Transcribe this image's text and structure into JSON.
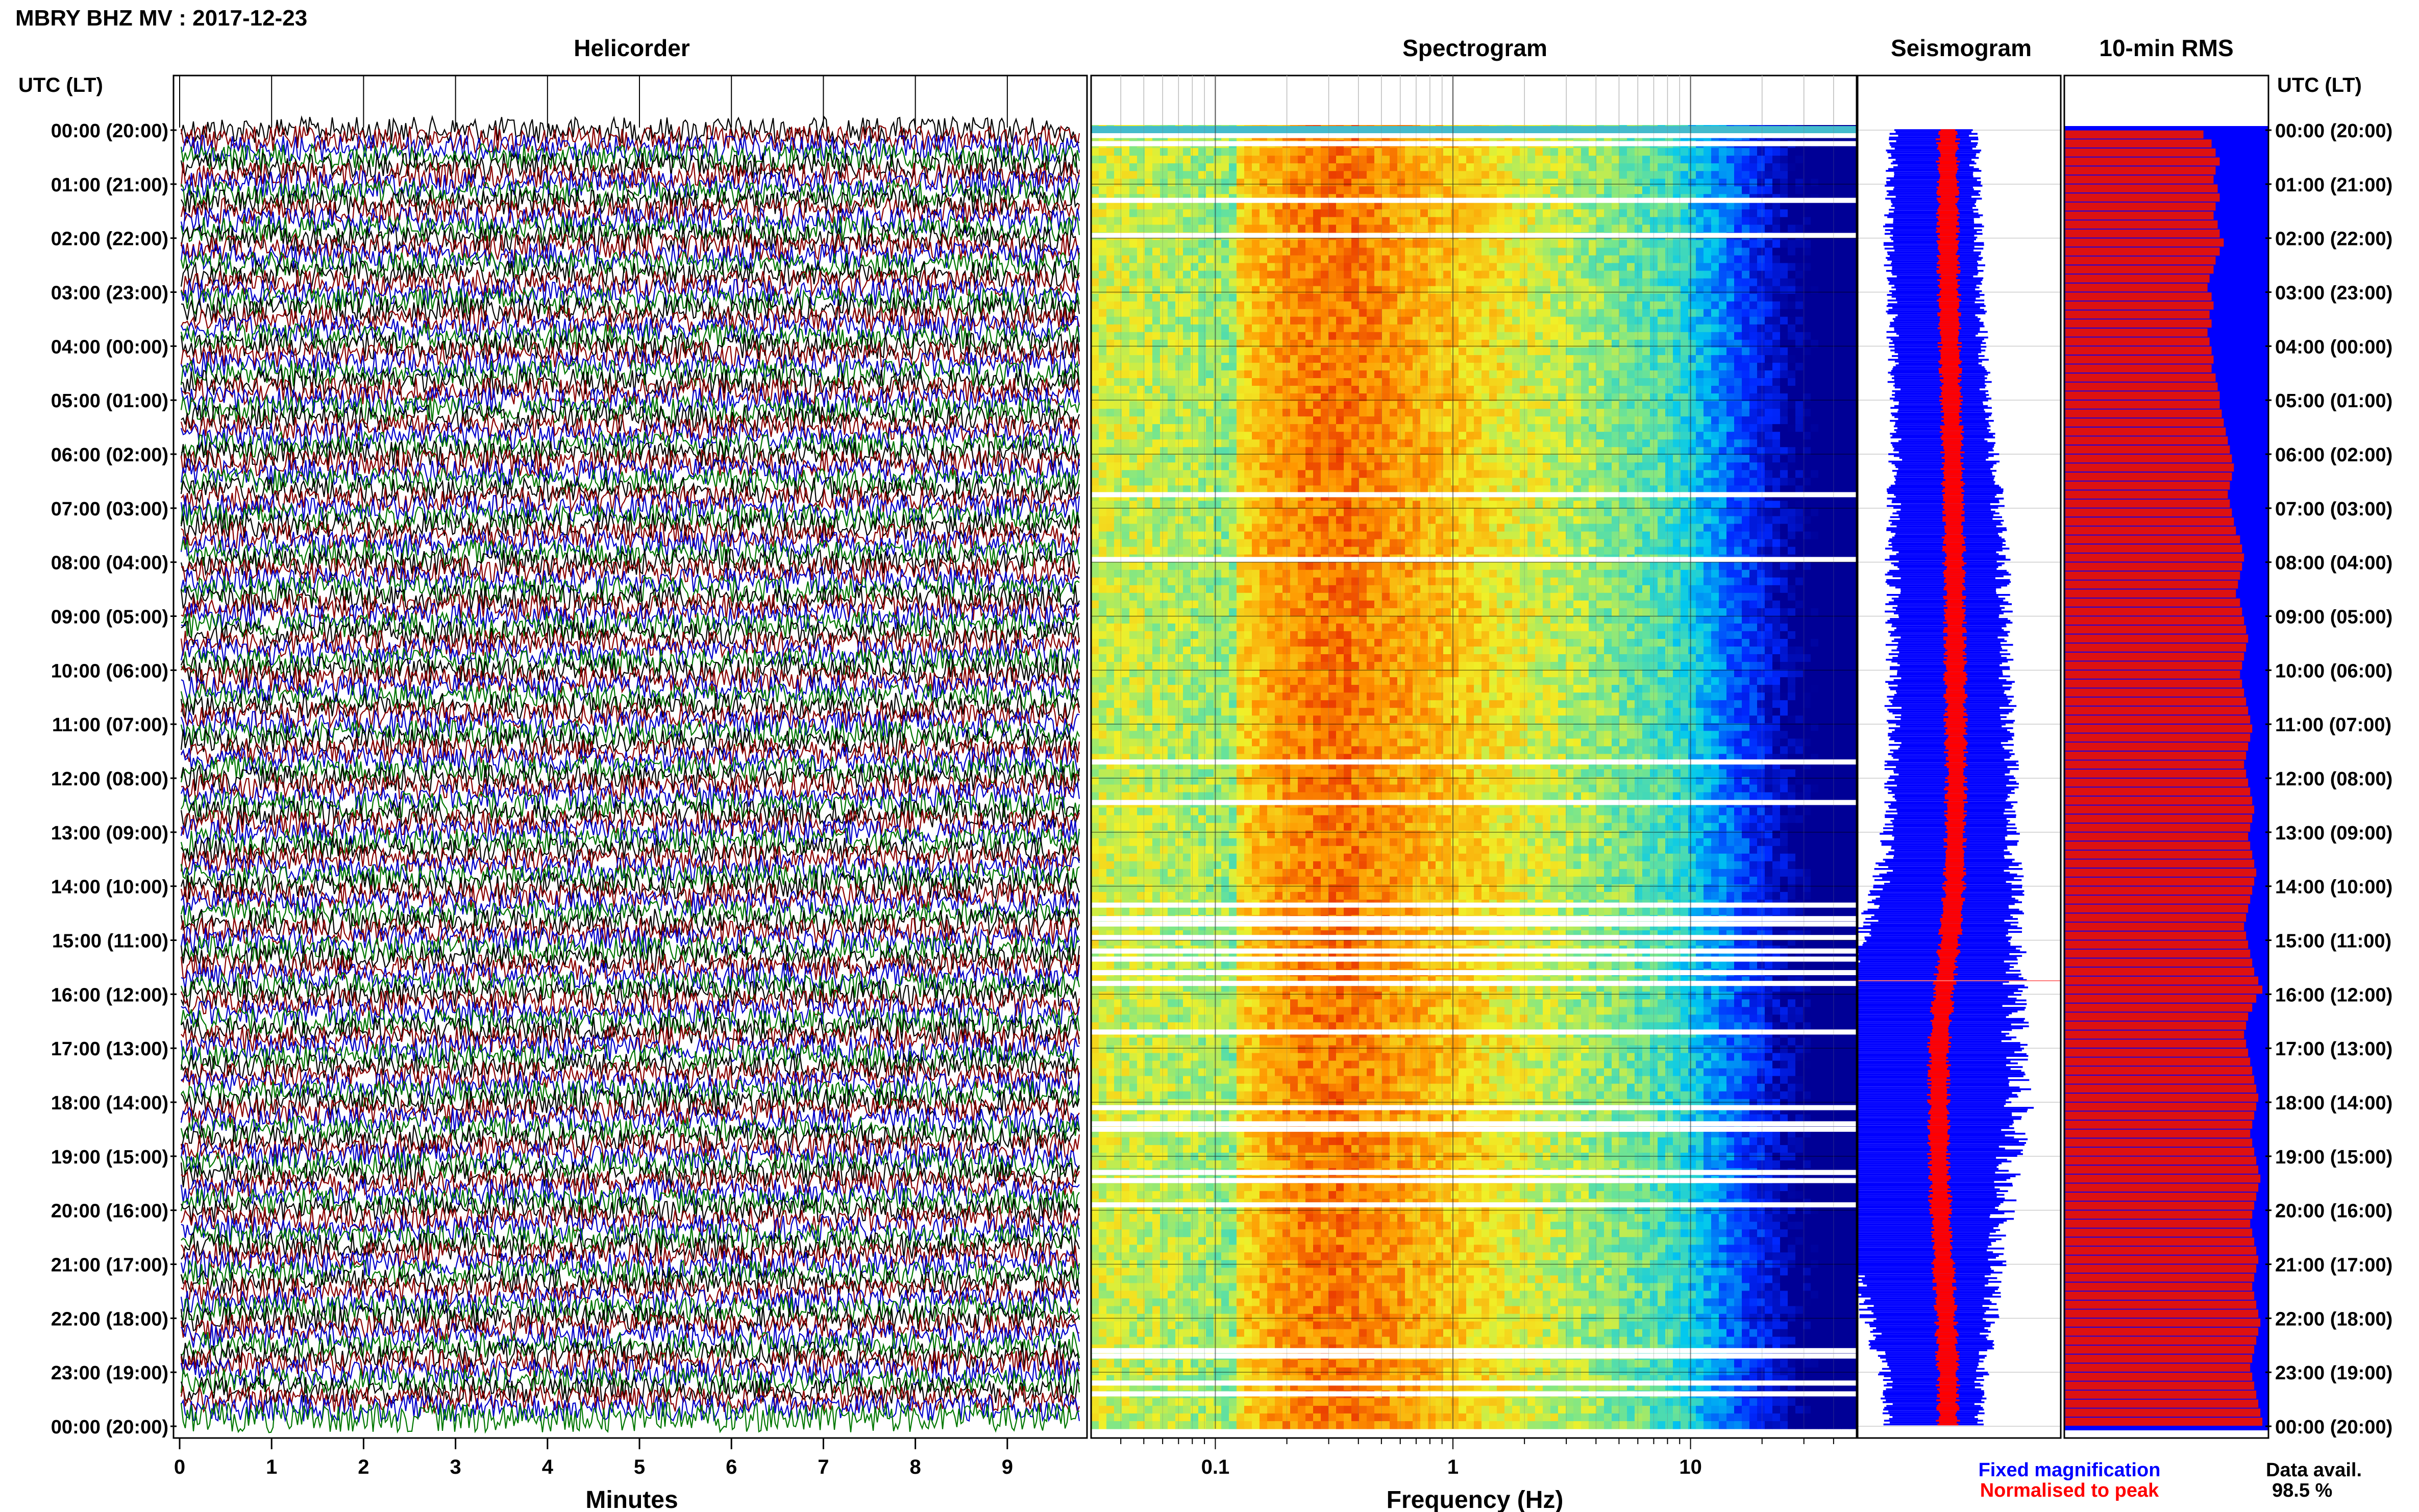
{
  "header": {
    "station_title": "MBRY BHZ MV : 2017-12-23"
  },
  "panels": {
    "helicorder": "Helicorder",
    "spectrogram": "Spectrogram",
    "seismogram": "Seismogram",
    "rms": "10-min RMS"
  },
  "axis": {
    "time_header": "UTC (LT)",
    "minutes_label": "Minutes",
    "frequency_label": "Frequency (Hz)",
    "minute_ticks": [
      "0",
      "1",
      "2",
      "3",
      "4",
      "5",
      "6",
      "7",
      "8",
      "9"
    ],
    "frequency_ticks": [
      "0.1",
      "1",
      "10"
    ],
    "time_ticks": [
      "00:00 (20:00)",
      "01:00 (21:00)",
      "02:00 (22:00)",
      "03:00 (23:00)",
      "04:00 (00:00)",
      "05:00 (01:00)",
      "06:00 (02:00)",
      "07:00 (03:00)",
      "08:00 (04:00)",
      "09:00 (05:00)",
      "10:00 (06:00)",
      "11:00 (07:00)",
      "12:00 (08:00)",
      "13:00 (09:00)",
      "14:00 (10:00)",
      "15:00 (11:00)",
      "16:00 (12:00)",
      "17:00 (13:00)",
      "18:00 (14:00)",
      "19:00 (15:00)",
      "20:00 (16:00)",
      "21:00 (17:00)",
      "22:00 (18:00)",
      "23:00 (19:00)",
      "00:00 (20:00)"
    ]
  },
  "legend": {
    "fixed": "Fixed magnification",
    "normalised": "Normalised to peak",
    "data_avail_label": "Data avail.",
    "data_avail_value": "98.5 %"
  },
  "colors": {
    "helicorder_traces": [
      "#000000",
      "#8b0000",
      "#0000cc",
      "#007700"
    ],
    "fixed_magnification": "#0000ff",
    "normalised_to_peak": "#ff0000",
    "rms_bar": "#dd1111",
    "rms_background": "#0000ff"
  },
  "chart_data": [
    {
      "type": "line",
      "panel": "Helicorder",
      "xlabel": "Minutes",
      "xlim": [
        0,
        10
      ],
      "rows": 144,
      "row_minutes": 10
    },
    {
      "type": "heatmap",
      "panel": "Spectrogram",
      "xlabel": "Frequency (Hz)",
      "xscale": "log",
      "xlim": [
        0.03,
        50
      ],
      "peak_band_hz": [
        0.2,
        0.6
      ],
      "gaps_hours": [
        0.1,
        0.25,
        1.3,
        1.95,
        6.75,
        7.95,
        11.7,
        12.45,
        14.35,
        14.6,
        14.7,
        14.95,
        15.2,
        15.35,
        15.6,
        15.8,
        16.7,
        18.1,
        18.4,
        18.5,
        19.3,
        19.45,
        19.9,
        22.6,
        22.7,
        23.2,
        23.4
      ]
    },
    {
      "type": "area",
      "panel": "Seismogram",
      "series": [
        {
          "name": "Fixed magnification",
          "hours": [
            0,
            2,
            4,
            6,
            8,
            10,
            12,
            13,
            14,
            15,
            16,
            17,
            18,
            19,
            20,
            21,
            22,
            23,
            24
          ],
          "half_width": [
            0.2,
            0.22,
            0.22,
            0.24,
            0.27,
            0.28,
            0.29,
            0.3,
            0.33,
            0.38,
            0.45,
            0.5,
            0.52,
            0.48,
            0.42,
            0.36,
            0.3,
            0.24,
            0.22
          ],
          "offset": [
            0.1,
            0.1,
            0.12,
            0.15,
            0.17,
            0.18,
            0.19,
            0.18,
            0.17,
            0.12,
            0.05,
            0.0,
            0.0,
            0.0,
            0.02,
            0.05,
            0.08,
            0.1,
            0.1
          ]
        },
        {
          "name": "Normalised to peak",
          "hours": [
            0,
            24
          ],
          "half_width": [
            0.1,
            0.1
          ]
        }
      ]
    },
    {
      "type": "bar",
      "panel": "10-min RMS",
      "bins": 144,
      "relative_values": [
        0.68,
        0.72,
        0.74,
        0.76,
        0.74,
        0.73,
        0.75,
        0.76,
        0.74,
        0.73,
        0.75,
        0.76,
        0.78,
        0.76,
        0.74,
        0.73,
        0.71,
        0.7,
        0.72,
        0.73,
        0.71,
        0.72,
        0.7,
        0.71,
        0.72,
        0.73,
        0.72,
        0.74,
        0.75,
        0.76,
        0.76,
        0.77,
        0.78,
        0.79,
        0.8,
        0.81,
        0.82,
        0.83,
        0.82,
        0.81,
        0.8,
        0.81,
        0.82,
        0.83,
        0.84,
        0.86,
        0.87,
        0.88,
        0.87,
        0.86,
        0.85,
        0.84,
        0.86,
        0.87,
        0.88,
        0.89,
        0.9,
        0.89,
        0.88,
        0.87,
        0.86,
        0.87,
        0.88,
        0.89,
        0.9,
        0.91,
        0.92,
        0.91,
        0.9,
        0.89,
        0.88,
        0.89,
        0.9,
        0.91,
        0.92,
        0.93,
        0.92,
        0.91,
        0.9,
        0.91,
        0.92,
        0.93,
        0.94,
        0.93,
        0.92,
        0.91,
        0.9,
        0.89,
        0.88,
        0.89,
        0.9,
        0.91,
        0.92,
        0.93,
        0.95,
        0.97,
        0.94,
        0.92,
        0.9,
        0.89,
        0.88,
        0.89,
        0.9,
        0.91,
        0.92,
        0.93,
        0.94,
        0.95,
        0.94,
        0.93,
        0.92,
        0.91,
        0.92,
        0.93,
        0.94,
        0.95,
        0.96,
        0.95,
        0.94,
        0.93,
        0.92,
        0.91,
        0.92,
        0.93,
        0.94,
        0.95,
        0.94,
        0.93,
        0.92,
        0.93,
        0.94,
        0.95,
        0.96,
        0.95,
        0.94,
        0.93,
        0.92,
        0.91,
        0.92,
        0.93,
        0.94,
        0.95,
        0.96,
        0.97
      ]
    }
  ]
}
